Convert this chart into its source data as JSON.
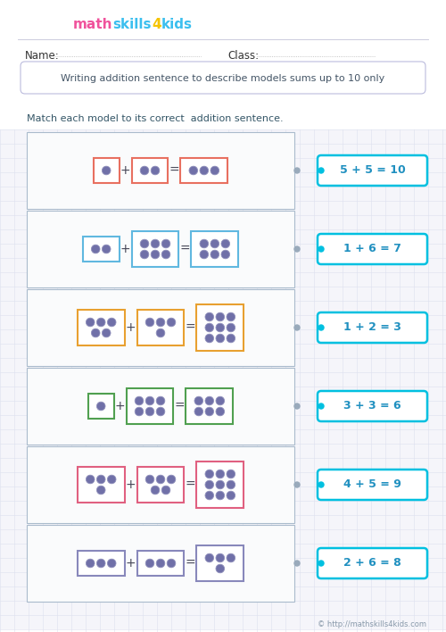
{
  "subtitle": "Writing addition sentence to describe models sums up to 10 only",
  "instruction": "Match each model to its correct  addition sentence.",
  "bg_color": "#FFFFFF",
  "grid_color": "#DDE0EE",
  "grid_bg": "#F5F5FA",
  "footer": "© http://mathskills4kids.com",
  "rows": [
    {
      "box_color": "#E87060",
      "answer": "5 + 5 = 10",
      "g1": 1,
      "g2": 2,
      "g3": 3
    },
    {
      "box_color": "#60B8E0",
      "answer": "1 + 6 = 7",
      "g1": 2,
      "g2": 6,
      "g3": 6
    },
    {
      "box_color": "#E8A030",
      "answer": "1 + 2 = 3",
      "g1": 5,
      "g2": 4,
      "g3": 9
    },
    {
      "box_color": "#50A050",
      "answer": "3 + 3 = 6",
      "g1": 1,
      "g2": 6,
      "g3": 6
    },
    {
      "box_color": "#E06080",
      "answer": "4 + 5 = 9",
      "g1": 4,
      "g2": 5,
      "g3": 9
    },
    {
      "box_color": "#8888BB",
      "answer": "2 + 6 = 8",
      "g1": 3,
      "g2": 3,
      "g3": 4
    }
  ],
  "dot_color": "#7070A8",
  "dot_edge_color": "#9090BB",
  "answer_border": "#00C0E0",
  "answer_text_color": "#2090C0",
  "connector_color": "#99AABB",
  "row_border_color": "#AABBCC",
  "row_fill": "#FAFBFC"
}
